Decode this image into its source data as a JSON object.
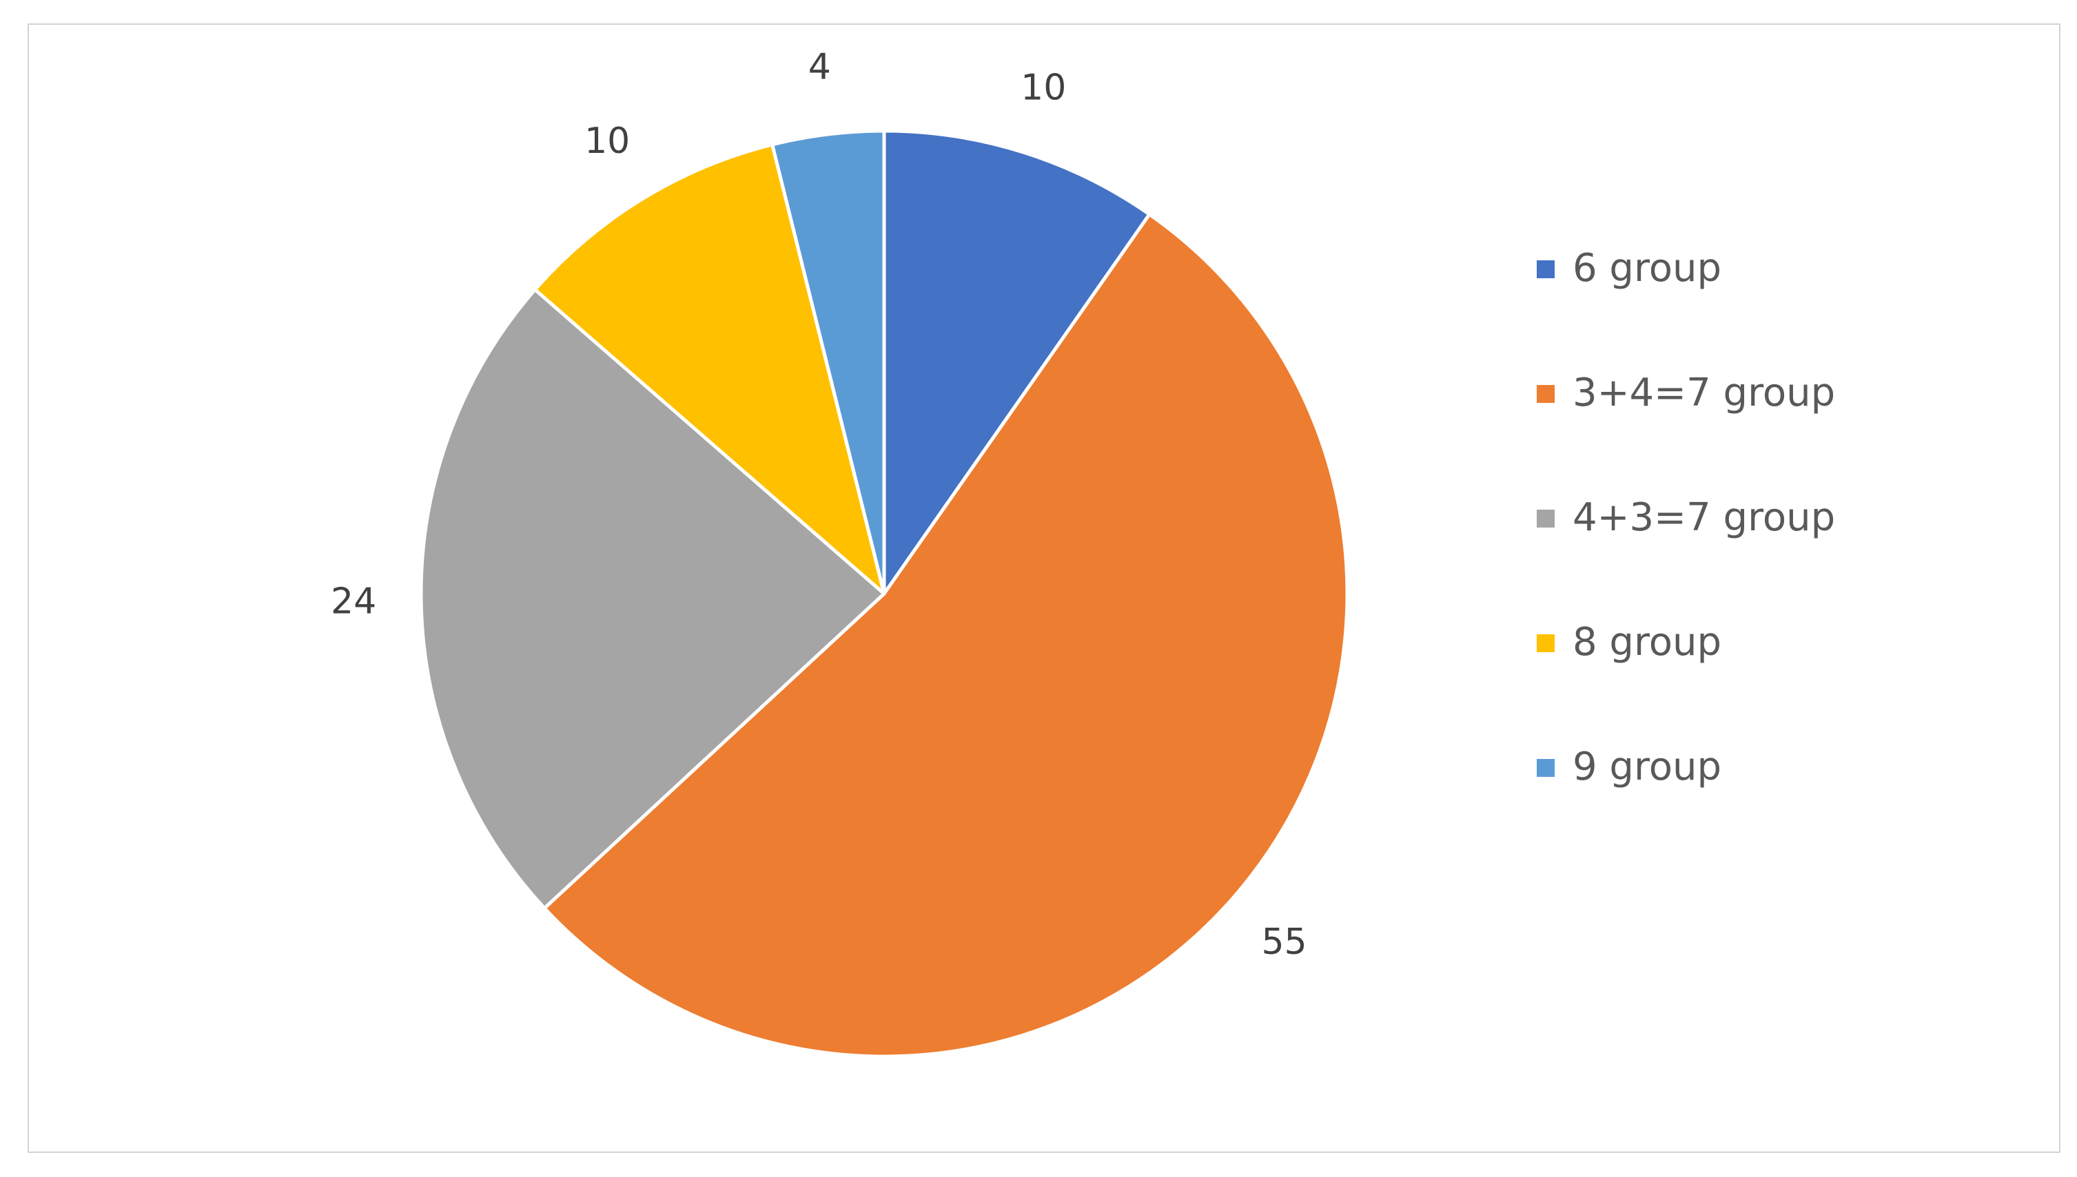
{
  "chart_data": {
    "type": "pie",
    "title": "",
    "categories": [
      "6 group",
      "3+4=7 group",
      "4+3=7 group",
      "8 group",
      "9 group"
    ],
    "values": [
      10,
      55,
      24,
      10,
      4
    ],
    "colors": [
      "#4472C4",
      "#ED7D31",
      "#A5A5A5",
      "#FFC000",
      "#5B9BD5"
    ],
    "start_angle": "12 o'clock",
    "direction": "clockwise",
    "data_labels": [
      "10",
      "55",
      "24",
      "10",
      "4"
    ],
    "legend_position": "right"
  }
}
